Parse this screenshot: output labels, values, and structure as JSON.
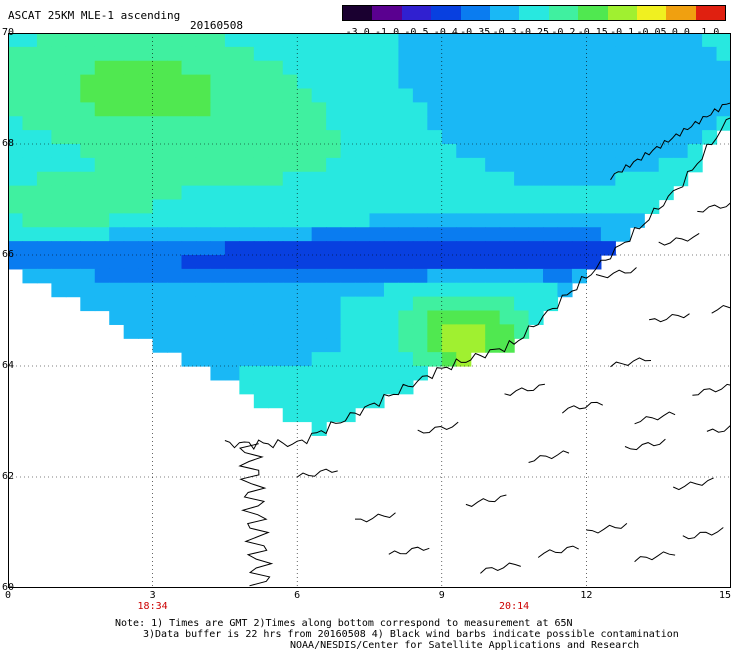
{
  "header": {
    "title": "ASCAT 25KM MLE-1 ascending",
    "date": "20160508"
  },
  "colorbar": {
    "labels": [
      "-3.0",
      "-1.0",
      "-0.5",
      "-0.4",
      "-0.35",
      "-0.3",
      "-0.25",
      "-0.2",
      "-0.15",
      "-0.1",
      "-0.05",
      "0.0",
      "1.0"
    ],
    "colors": [
      "#1a0030",
      "#5a0090",
      "#3020d0",
      "#0840e0",
      "#0a7cf0",
      "#1ab8f5",
      "#28e8e0",
      "#40f0a0",
      "#50e850",
      "#a0f030",
      "#f0f020",
      "#f0a010",
      "#e02010"
    ]
  },
  "map": {
    "lat_labels": [
      "70",
      "68",
      "66",
      "64",
      "62",
      "60"
    ],
    "lon_labels": [
      "0",
      "3",
      "6",
      "9",
      "12",
      "15"
    ],
    "pass_times": [
      {
        "time": "18:34",
        "lon": 3
      },
      {
        "time": "20:14",
        "lon": 10.5
      }
    ],
    "coast_color": "#000000"
  },
  "footer": {
    "note_line1": "Note: 1) Times are GMT 2)Times along bottom correspond to measurement at 65N",
    "note_line2": "3)Data buffer is 22 hrs from 20160508 4) Black wind barbs indicate possible contamination",
    "credit": "NOAA/NESDIS/Center for Satellite Applications and Research"
  }
}
